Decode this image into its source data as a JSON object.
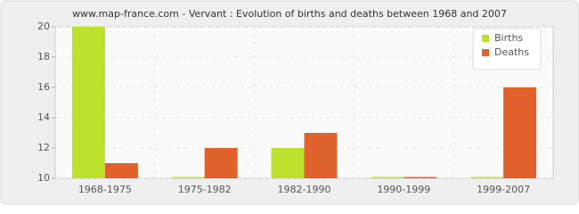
{
  "chart_data": {
    "type": "bar",
    "title": "www.map-france.com - Vervant : Evolution of births and deaths between 1968 and 2007",
    "categories": [
      "1968-1975",
      "1975-1982",
      "1982-1990",
      "1990-1999",
      "1999-2007"
    ],
    "series": [
      {
        "name": "Births",
        "color": "#bde22e",
        "values": [
          20,
          10,
          12,
          10,
          10
        ]
      },
      {
        "name": "Deaths",
        "color": "#e0632e",
        "values": [
          11,
          12,
          13,
          10,
          16
        ]
      }
    ],
    "ylim": [
      10,
      20
    ],
    "yticks": [
      10,
      12,
      14,
      16,
      18,
      20
    ],
    "grid": true,
    "legend": "top-right"
  }
}
